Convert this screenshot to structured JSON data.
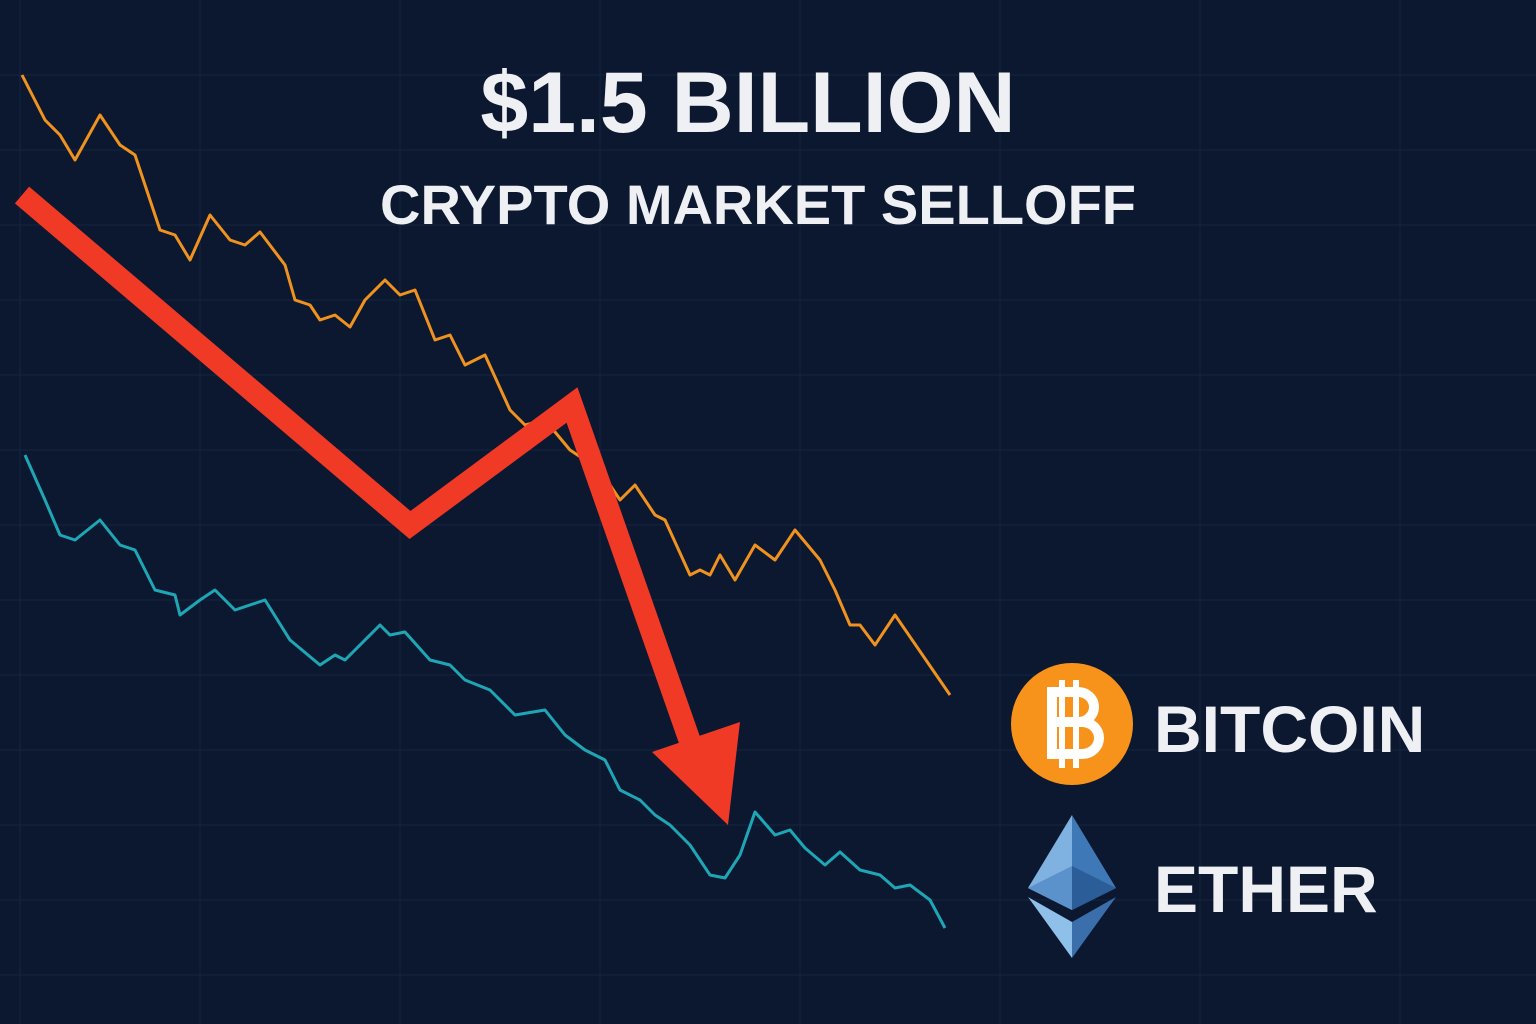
{
  "headline": "$1.5 BILLION",
  "subheadline": "CRYPTO MARKET SELLOFF",
  "legend": [
    {
      "label": "BITCOIN"
    },
    {
      "label": "ETHER"
    }
  ]
}
